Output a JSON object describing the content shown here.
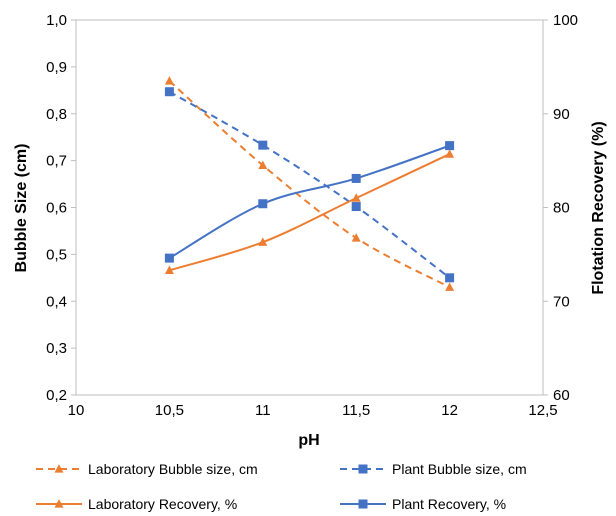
{
  "chart_data": {
    "type": "line",
    "xlabel": "pH",
    "ylabel": "Bubble Size (cm)",
    "y2label": "Flotation Recovery (%)",
    "xlim": [
      10,
      12.5
    ],
    "ylim": [
      0.2,
      1.0
    ],
    "y2lim": [
      60,
      100
    ],
    "x_ticks": [
      "10",
      "10,5",
      "11",
      "11,5",
      "12",
      "12,5"
    ],
    "y_ticks": [
      "0,2",
      "0,3",
      "0,4",
      "0,5",
      "0,6",
      "0,7",
      "0,8",
      "0,9",
      "1,0"
    ],
    "y2_ticks": [
      "60",
      "70",
      "80",
      "90",
      "100"
    ],
    "grid": false,
    "legend_position": "bottom",
    "series": [
      {
        "name": "Laboratory Bubble size, cm",
        "axis": "left",
        "color": "#ED7D31",
        "dash": true,
        "marker": "triangle",
        "x": [
          10.5,
          11,
          11.5,
          12
        ],
        "values": [
          0.87,
          0.69,
          0.535,
          0.43
        ]
      },
      {
        "name": "Plant Bubble size, cm",
        "axis": "left",
        "color": "#4472C4",
        "dash": true,
        "marker": "square",
        "x": [
          10.5,
          11,
          11.5,
          12
        ],
        "values": [
          0.847,
          0.733,
          0.602,
          0.45
        ]
      },
      {
        "name": "Laboratory Recovery, %",
        "axis": "right",
        "color": "#ED7D31",
        "dash": false,
        "marker": "triangle",
        "x": [
          10.5,
          11,
          11.5,
          12
        ],
        "values": [
          73.3,
          76.3,
          81.0,
          85.7
        ]
      },
      {
        "name": "Plant Recovery, %",
        "axis": "right",
        "color": "#4472C4",
        "dash": false,
        "marker": "square",
        "x": [
          10.5,
          11,
          11.5,
          12
        ],
        "values": [
          74.6,
          80.4,
          83.1,
          86.6
        ]
      }
    ]
  }
}
